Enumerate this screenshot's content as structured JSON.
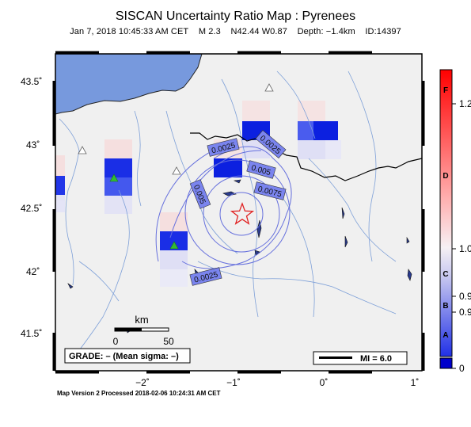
{
  "map": {
    "title": "SISCAN Uncertainty Ratio Map : Pyrenees",
    "subtitle": {
      "date": "Jan  7, 2018 10:45:33 AM CET",
      "magnitude": "M 2.3",
      "location": "N42.44 W0.87",
      "depth": "Depth: −1.4km",
      "id": "ID:14397"
    },
    "y_ticks": [
      "43.5˚",
      "43˚",
      "42.5˚",
      "42˚",
      "41.5˚"
    ],
    "x_ticks": [
      "−2˚",
      "−1˚",
      "0˚",
      "1˚"
    ],
    "contours": [
      "0.0025",
      "0.0025",
      "0.005",
      "0.0075",
      "0.005",
      "0.0025"
    ],
    "scale_bar": {
      "unit": "km",
      "min": "0",
      "max": "50"
    },
    "grade_box": "GRADE: – (Mean sigma: –)",
    "mi_box": "MI = 6.0",
    "footer": "Map Version 2 Processed 2018-02-06 10:24:31 AM CET",
    "colors": {
      "ocean": "#7799dd",
      "land": "#f0f0f0",
      "star": "#e02020",
      "station": "#33bb33"
    }
  },
  "colorbar": {
    "grades": [
      "F",
      "D",
      "C",
      "B",
      "A"
    ],
    "values": [
      "1.2",
      "1.0",
      "0.9",
      "0.9",
      "0"
    ]
  }
}
